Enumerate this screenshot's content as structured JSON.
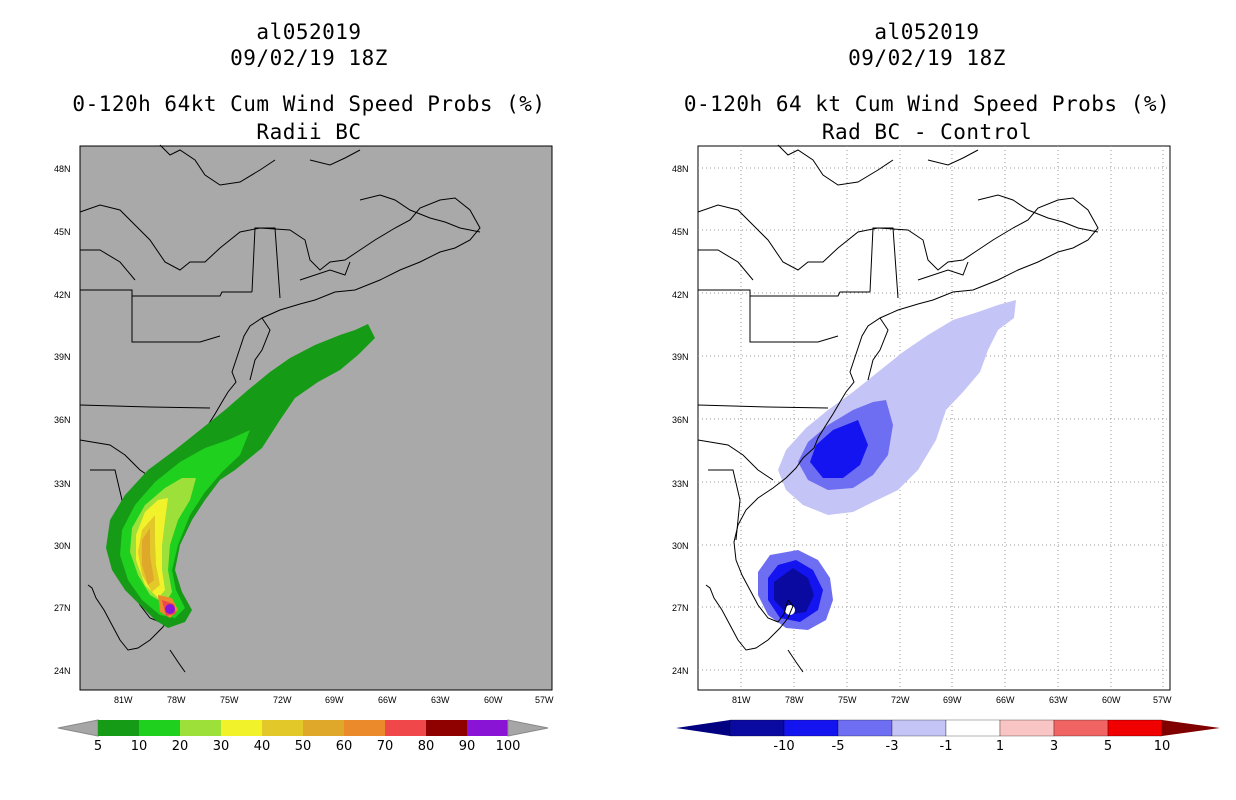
{
  "panels": [
    {
      "id": "left",
      "storm": "al052019",
      "datetime": "09/02/19 18Z",
      "title": "0-120h 64kt Cum Wind Speed Probs (%)",
      "subtitle": "Radii BC",
      "colorbar": {
        "labels": [
          "5",
          "10",
          "20",
          "30",
          "40",
          "50",
          "60",
          "70",
          "80",
          "90",
          "100"
        ],
        "colors": [
          "#169b16",
          "#1fd01f",
          "#9ee03a",
          "#f2f22a",
          "#e3c82a",
          "#e0a82a",
          "#ea8a2a",
          "#f0484a",
          "#8f0000",
          "#8a14d6"
        ],
        "arrow_color": "#a6a6a6"
      }
    },
    {
      "id": "right",
      "storm": "al052019",
      "datetime": "09/02/19 18Z",
      "title": "0-120h 64 kt Cum Wind Speed Probs (%)",
      "subtitle": "Rad BC - Control",
      "colorbar": {
        "labels": [
          "-10",
          "-5",
          "-3",
          "-1",
          "1",
          "3",
          "5",
          "10"
        ],
        "colors": [
          "#0a0aa0",
          "#1414f0",
          "#6e6ef2",
          "#c4c4f6",
          "#ffffff",
          "#f8c4c4",
          "#f06464",
          "#f00000"
        ],
        "arrow_left": "#000080",
        "arrow_right": "#800000"
      }
    }
  ],
  "map": {
    "lat_labels": [
      "48N",
      "45N",
      "42N",
      "39N",
      "36N",
      "33N",
      "30N",
      "27N",
      "24N"
    ],
    "lon_labels": [
      "81W",
      "78W",
      "75W",
      "72W",
      "69W",
      "66W",
      "63W",
      "60W",
      "57W"
    ],
    "left_background": "#a9a9a9",
    "right_background": "#ffffff"
  }
}
